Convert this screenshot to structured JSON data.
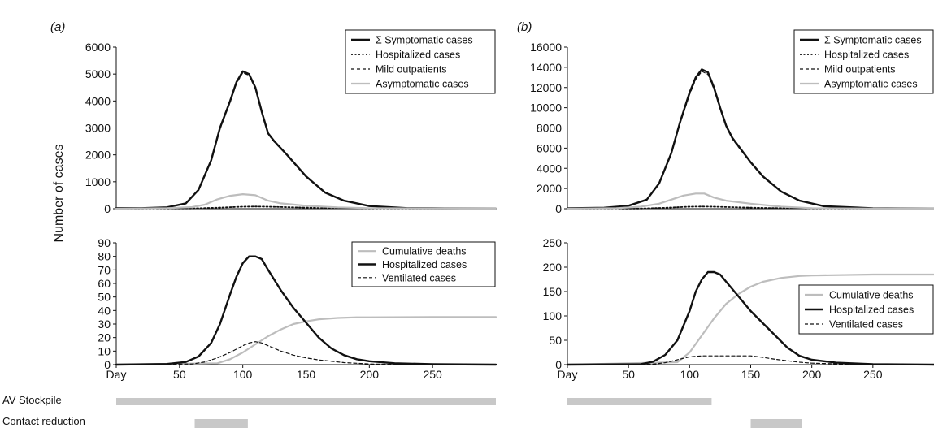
{
  "ylabel": "Number of cases",
  "row_labels": [
    "AV Stockpile",
    "Contact reduction"
  ],
  "chart_data": [
    {
      "id": "a-top",
      "panel_label": "(a)",
      "type": "line",
      "xlim": [
        0,
        300
      ],
      "ylim": [
        0,
        6000
      ],
      "yticks": [
        "0",
        "1000",
        "2000",
        "3000",
        "4000",
        "5000",
        "6000"
      ],
      "xticks": [],
      "legend_position": "top-right",
      "series": [
        {
          "name": "Σ Symptomatic cases",
          "style": "bold",
          "x": [
            0,
            20,
            40,
            55,
            65,
            75,
            82,
            90,
            95,
            100,
            105,
            110,
            115,
            120,
            125,
            135,
            150,
            165,
            180,
            200,
            230,
            260,
            300
          ],
          "y": [
            20,
            20,
            50,
            200,
            700,
            1800,
            3000,
            4000,
            4700,
            5100,
            5000,
            4500,
            3600,
            2800,
            2500,
            2000,
            1200,
            600,
            300,
            100,
            20,
            10,
            0
          ]
        },
        {
          "name": "Hospitalized cases",
          "style": "dotted",
          "x": [
            0,
            60,
            80,
            100,
            110,
            120,
            140,
            160,
            200,
            300
          ],
          "y": [
            0,
            10,
            40,
            75,
            80,
            75,
            50,
            30,
            5,
            0
          ]
        },
        {
          "name": "Mild outpatients",
          "style": "dashed",
          "x": [
            0,
            20,
            40,
            55,
            65,
            75,
            82,
            90,
            95,
            100,
            105,
            110,
            115,
            120,
            125,
            135,
            150,
            165,
            180,
            200,
            230,
            260,
            300
          ],
          "y": [
            20,
            20,
            50,
            200,
            680,
            1760,
            2950,
            3950,
            4650,
            5050,
            4950,
            4450,
            3560,
            2770,
            2470,
            1980,
            1190,
            595,
            298,
            99,
            20,
            10,
            0
          ]
        },
        {
          "name": "Asymptomatic cases",
          "style": "gray",
          "x": [
            0,
            40,
            60,
            70,
            80,
            90,
            100,
            110,
            120,
            130,
            150,
            175,
            200,
            250,
            300
          ],
          "y": [
            0,
            20,
            60,
            150,
            350,
            480,
            540,
            500,
            300,
            200,
            110,
            50,
            20,
            5,
            0
          ]
        }
      ]
    },
    {
      "id": "a-bottom",
      "type": "line",
      "xlim": [
        0,
        300
      ],
      "ylim": [
        0,
        90
      ],
      "yticks": [
        "0",
        "10",
        "20",
        "30",
        "40",
        "50",
        "60",
        "70",
        "80",
        "90"
      ],
      "xticks": [
        "Day",
        "50",
        "100",
        "150",
        "200",
        "250"
      ],
      "legend_position": "top-right",
      "series": [
        {
          "name": "Cumulative deaths",
          "style": "gray",
          "x": [
            0,
            80,
            90,
            100,
            110,
            120,
            130,
            140,
            150,
            160,
            175,
            190,
            200,
            250,
            300
          ],
          "y": [
            0,
            1,
            4,
            9,
            15,
            21,
            26,
            30,
            32,
            33.5,
            34.5,
            35,
            35,
            35.2,
            35.2
          ]
        },
        {
          "name": "Hospitalized cases",
          "style": "bold",
          "x": [
            0,
            40,
            55,
            65,
            75,
            82,
            90,
            95,
            100,
            105,
            110,
            115,
            120,
            130,
            140,
            150,
            160,
            170,
            180,
            190,
            200,
            220,
            250,
            300
          ],
          "y": [
            0,
            0.5,
            2,
            6,
            16,
            30,
            52,
            65,
            75,
            80,
            80,
            78,
            70,
            55,
            42,
            31,
            20,
            12,
            7,
            4,
            2.5,
            1,
            0.3,
            0
          ]
        },
        {
          "name": "Ventilated cases",
          "style": "dashed",
          "x": [
            0,
            60,
            70,
            80,
            90,
            100,
            105,
            110,
            115,
            120,
            130,
            140,
            150,
            160,
            170,
            180,
            190,
            200,
            220,
            250,
            300
          ],
          "y": [
            0,
            0.5,
            2,
            5,
            9,
            14,
            16,
            17,
            16,
            14,
            10,
            7,
            5,
            3.5,
            2.5,
            1.5,
            1,
            0.5,
            0.2,
            0,
            0
          ]
        }
      ]
    },
    {
      "id": "b-top",
      "panel_label": "(b)",
      "type": "line",
      "xlim": [
        0,
        300
      ],
      "ylim": [
        0,
        16000
      ],
      "yticks": [
        "0",
        "2000",
        "4000",
        "6000",
        "8000",
        "10000",
        "12000",
        "14000",
        "16000"
      ],
      "xticks": [],
      "legend_position": "top-right",
      "series": [
        {
          "name": "Σ Symptomatic cases",
          "style": "bold",
          "x": [
            0,
            30,
            50,
            65,
            75,
            85,
            92,
            100,
            105,
            110,
            115,
            120,
            125,
            130,
            135,
            140,
            150,
            160,
            175,
            190,
            210,
            250,
            300
          ],
          "y": [
            50,
            100,
            300,
            900,
            2500,
            5500,
            8500,
            11500,
            13000,
            13800,
            13500,
            12000,
            10000,
            8200,
            7000,
            6200,
            4600,
            3200,
            1700,
            800,
            250,
            50,
            0
          ]
        },
        {
          "name": "Hospitalized cases",
          "style": "dotted",
          "x": [
            0,
            60,
            80,
            100,
            110,
            120,
            140,
            160,
            200,
            300
          ],
          "y": [
            0,
            20,
            100,
            200,
            220,
            200,
            140,
            80,
            15,
            0
          ]
        },
        {
          "name": "Mild outpatients",
          "style": "dashed",
          "x": [
            0,
            30,
            50,
            65,
            75,
            85,
            92,
            100,
            105,
            110,
            115,
            120,
            125,
            130,
            135,
            140,
            150,
            160,
            175,
            190,
            210,
            250,
            300
          ],
          "y": [
            50,
            100,
            300,
            880,
            2450,
            5400,
            8350,
            11300,
            12800,
            13600,
            13300,
            11800,
            9850,
            8100,
            6900,
            6100,
            4530,
            3150,
            1670,
            790,
            245,
            50,
            0
          ]
        },
        {
          "name": "Asymptomatic cases",
          "style": "gray",
          "x": [
            0,
            40,
            60,
            75,
            85,
            95,
            105,
            112,
            120,
            130,
            150,
            175,
            200,
            250,
            300
          ],
          "y": [
            0,
            50,
            200,
            500,
            900,
            1300,
            1500,
            1500,
            1100,
            800,
            500,
            200,
            60,
            10,
            0
          ]
        }
      ]
    },
    {
      "id": "b-bottom",
      "type": "line",
      "xlim": [
        0,
        300
      ],
      "ylim": [
        0,
        250
      ],
      "yticks": [
        "0",
        "50",
        "100",
        "150",
        "200",
        "250"
      ],
      "xticks": [
        "Day",
        "50",
        "100",
        "150",
        "200",
        "250"
      ],
      "legend_position": "middle-right",
      "series": [
        {
          "name": "Cumulative deaths",
          "style": "gray",
          "x": [
            0,
            90,
            100,
            110,
            120,
            130,
            140,
            150,
            160,
            175,
            190,
            200,
            250,
            300
          ],
          "y": [
            0,
            5,
            25,
            60,
            95,
            125,
            145,
            160,
            170,
            178,
            182,
            183,
            185,
            185
          ]
        },
        {
          "name": "Hospitalized cases",
          "style": "bold",
          "x": [
            0,
            60,
            70,
            80,
            90,
            95,
            100,
            105,
            110,
            115,
            120,
            125,
            130,
            140,
            150,
            160,
            170,
            180,
            190,
            200,
            220,
            250,
            300
          ],
          "y": [
            0,
            1,
            6,
            20,
            50,
            80,
            110,
            150,
            175,
            190,
            190,
            185,
            170,
            140,
            110,
            85,
            60,
            35,
            18,
            10,
            4,
            1,
            0
          ]
        },
        {
          "name": "Ventilated cases",
          "style": "dashed",
          "x": [
            0,
            70,
            80,
            90,
            100,
            110,
            120,
            130,
            140,
            150,
            160,
            170,
            180,
            190,
            200,
            230,
            260,
            300
          ],
          "y": [
            0,
            1,
            4,
            10,
            16,
            18,
            18,
            18,
            18,
            18,
            15,
            11,
            8,
            5,
            3,
            1,
            0,
            0
          ]
        }
      ]
    }
  ],
  "intervention_bars": {
    "a": [
      {
        "row": 0,
        "start": 0,
        "end": 300
      },
      {
        "row": 1,
        "start": 62,
        "end": 104
      }
    ],
    "b": [
      {
        "row": 0,
        "start": 0,
        "end": 118
      },
      {
        "row": 1,
        "start": 150,
        "end": 192
      }
    ]
  }
}
